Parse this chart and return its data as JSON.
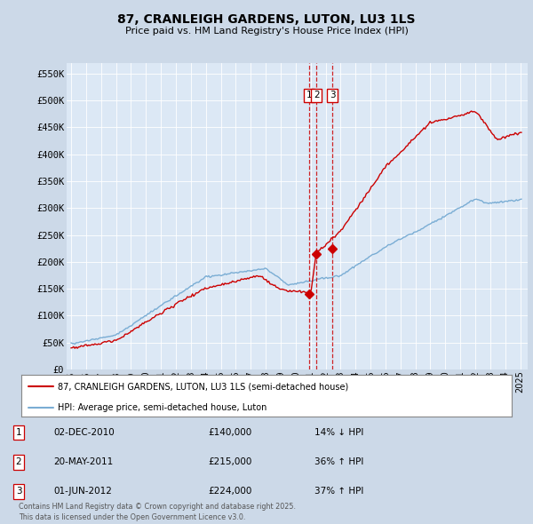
{
  "title": "87, CRANLEIGH GARDENS, LUTON, LU3 1LS",
  "subtitle": "Price paid vs. HM Land Registry's House Price Index (HPI)",
  "fig_bg_color": "#ccd9e8",
  "plot_bg_color": "#dce8f5",
  "red_line_color": "#cc0000",
  "blue_line_color": "#7aadd4",
  "vline_color": "#cc0000",
  "ylabel_ticks": [
    "£0",
    "£50K",
    "£100K",
    "£150K",
    "£200K",
    "£250K",
    "£300K",
    "£350K",
    "£400K",
    "£450K",
    "£500K",
    "£550K"
  ],
  "ytick_values": [
    0,
    50000,
    100000,
    150000,
    200000,
    250000,
    300000,
    350000,
    400000,
    450000,
    500000,
    550000
  ],
  "ylim": [
    0,
    570000
  ],
  "xlim_start": 1994.7,
  "xlim_end": 2025.5,
  "transactions": [
    {
      "label": "1",
      "date": "02-DEC-2010",
      "price": 140000,
      "pct": "14% ↓ HPI",
      "year_dec": 2010.92
    },
    {
      "label": "2",
      "date": "20-MAY-2011",
      "price": 215000,
      "pct": "36% ↑ HPI",
      "year_dec": 2011.38
    },
    {
      "label": "3",
      "date": "01-JUN-2012",
      "price": 224000,
      "pct": "37% ↑ HPI",
      "year_dec": 2012.46
    }
  ],
  "legend_line1": "87, CRANLEIGH GARDENS, LUTON, LU3 1LS (semi-detached house)",
  "legend_line2": "HPI: Average price, semi-detached house, Luton",
  "footer": "Contains HM Land Registry data © Crown copyright and database right 2025.\nThis data is licensed under the Open Government Licence v3.0.",
  "xticks": [
    1995,
    1996,
    1997,
    1998,
    1999,
    2000,
    2001,
    2002,
    2003,
    2004,
    2005,
    2006,
    2007,
    2008,
    2009,
    2010,
    2011,
    2012,
    2013,
    2014,
    2015,
    2016,
    2017,
    2018,
    2019,
    2020,
    2021,
    2022,
    2023,
    2024,
    2025
  ]
}
